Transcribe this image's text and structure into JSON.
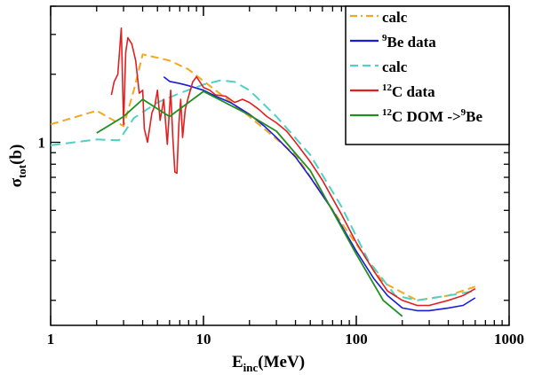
{
  "chart_data": {
    "type": "line",
    "xlabel": {
      "main": "E",
      "sub": "inc",
      "rest": "(MeV)"
    },
    "ylabel": {
      "main": "σ",
      "sub": "tot",
      "rest": "(b)"
    },
    "xscale": "log",
    "yscale": "log",
    "xlim": [
      1,
      1000
    ],
    "ylim": [
      0.155,
      4.0
    ],
    "x_ticks": [
      {
        "value": 1,
        "label": "1"
      },
      {
        "value": 10,
        "label": "10"
      },
      {
        "value": 100,
        "label": "100"
      },
      {
        "value": 1000,
        "label": "1000"
      }
    ],
    "y_ticks": [
      {
        "value": 1,
        "label": "1"
      }
    ],
    "grid": false,
    "legend_position": "top-right",
    "series": [
      {
        "legend": [
          {
            "sup": "",
            "text": "calc"
          }
        ],
        "color": "#f5a623",
        "dash": "9,5",
        "width": 2,
        "x": [
          1,
          2,
          3,
          3.5,
          4,
          6,
          8,
          12,
          20,
          40,
          80,
          150,
          250,
          400,
          600
        ],
        "y": [
          1.2,
          1.38,
          1.18,
          1.7,
          2.45,
          2.3,
          2.1,
          1.7,
          1.3,
          0.88,
          0.44,
          0.24,
          0.2,
          0.21,
          0.23
        ]
      },
      {
        "legend": [
          {
            "sup": "9",
            "text": "Be data"
          }
        ],
        "color": "#1a1adb",
        "dash": "",
        "width": 1.6,
        "x": [
          5.5,
          6,
          7,
          8,
          10,
          12,
          15,
          20,
          25,
          30,
          40,
          50,
          70,
          100,
          130,
          160,
          200,
          250,
          300,
          400,
          500,
          600
        ],
        "y": [
          1.95,
          1.86,
          1.82,
          1.78,
          1.7,
          1.6,
          1.5,
          1.33,
          1.18,
          1.05,
          0.86,
          0.7,
          0.5,
          0.33,
          0.25,
          0.21,
          0.185,
          0.18,
          0.18,
          0.185,
          0.19,
          0.205
        ]
      },
      {
        "legend": [
          {
            "sup": "",
            "text": "calc"
          }
        ],
        "color": "#4fd1c5",
        "dash": "11,6",
        "width": 2,
        "x": [
          1,
          2,
          2.8,
          3.5,
          5,
          7,
          10,
          13,
          16,
          20,
          30,
          50,
          80,
          120,
          180,
          250,
          400,
          600
        ],
        "y": [
          0.97,
          1.03,
          1.02,
          1.28,
          1.5,
          1.65,
          1.8,
          1.88,
          1.85,
          1.7,
          1.3,
          0.88,
          0.52,
          0.3,
          0.21,
          0.2,
          0.21,
          0.22
        ]
      },
      {
        "legend": [
          {
            "sup": "12",
            "text": "C data"
          }
        ],
        "color": "#e02020",
        "dash": "",
        "width": 1.6,
        "x": [
          2.5,
          2.6,
          2.75,
          2.9,
          3.0,
          3.1,
          3.2,
          3.4,
          3.6,
          3.8,
          4.0,
          4.1,
          4.3,
          4.6,
          4.8,
          5.0,
          5.2,
          5.5,
          5.8,
          6.1,
          6.3,
          6.5,
          6.7,
          6.9,
          7.1,
          7.3,
          7.6,
          8.0,
          8.5,
          9.0,
          10,
          11,
          12,
          14,
          16,
          18,
          20,
          23,
          26,
          30,
          35,
          40,
          50,
          60,
          80,
          100,
          130,
          160,
          200,
          250,
          300,
          400,
          500,
          600
        ],
        "y": [
          1.62,
          1.85,
          2.0,
          3.2,
          1.2,
          2.5,
          2.9,
          2.72,
          2.3,
          1.65,
          1.7,
          1.15,
          1.0,
          1.35,
          1.45,
          1.7,
          1.25,
          1.55,
          0.98,
          1.7,
          1.05,
          0.74,
          0.73,
          1.2,
          1.55,
          1.05,
          1.4,
          1.6,
          1.85,
          1.95,
          1.75,
          1.7,
          1.62,
          1.6,
          1.5,
          1.55,
          1.5,
          1.4,
          1.3,
          1.22,
          1.12,
          1.0,
          0.82,
          0.68,
          0.48,
          0.36,
          0.27,
          0.22,
          0.2,
          0.19,
          0.19,
          0.2,
          0.21,
          0.225
        ]
      },
      {
        "legend": [
          {
            "sup": "12",
            "text": "C DOM ->"
          },
          {
            "sup": "9",
            "text": "Be"
          }
        ],
        "color": "#1f8f1f",
        "dash": "",
        "width": 1.8,
        "x": [
          2,
          3,
          4,
          6,
          10,
          20,
          30,
          50,
          100,
          150,
          200
        ],
        "y": [
          1.1,
          1.3,
          1.55,
          1.3,
          1.68,
          1.32,
          1.12,
          0.75,
          0.32,
          0.2,
          0.17
        ]
      }
    ]
  }
}
